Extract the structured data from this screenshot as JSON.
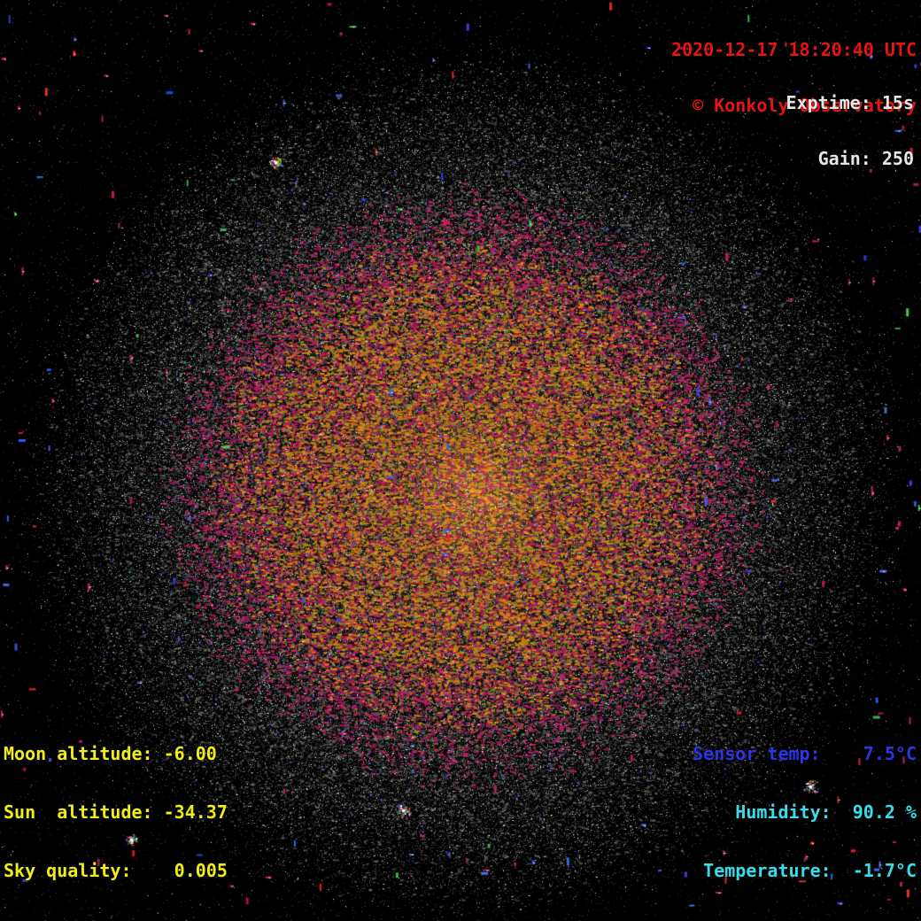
{
  "colors": {
    "timestamp_red": "#e81410",
    "settings_white": "#e6e6e6",
    "astro_yellow": "#f0ee12",
    "sensor_blue": "#2a35e6",
    "environment_cyan": "#38dcea",
    "background": "#000000",
    "core_gold": "#c08a20",
    "noise_crimson": "#a02460"
  },
  "header": {
    "timestamp": "2020-12-17 18:20:40 UTC",
    "credit": "© Konkoly Observatory"
  },
  "camera": {
    "exptime_line": "Exptime: 15s",
    "gain_line": "Gain: 250",
    "exptime_seconds": 15,
    "gain": 250
  },
  "astro": {
    "moon_line": "Moon altitude: -6.00",
    "sun_line": "Sun  altitude: -34.37",
    "sky_line": "Sky quality:    0.005",
    "moon_altitude_deg": -6.0,
    "sun_altitude_deg": -34.37,
    "sky_quality": 0.005
  },
  "environment": {
    "sensor_line": "Sensor temp:    7.5°C",
    "humidity_line": "Humidity:  90.2 %",
    "temperature_line": "Temperature:  -1.7°C",
    "sensor_temp_c": 7.5,
    "humidity_pct": 90.2,
    "ambient_temp_c": -1.7
  }
}
